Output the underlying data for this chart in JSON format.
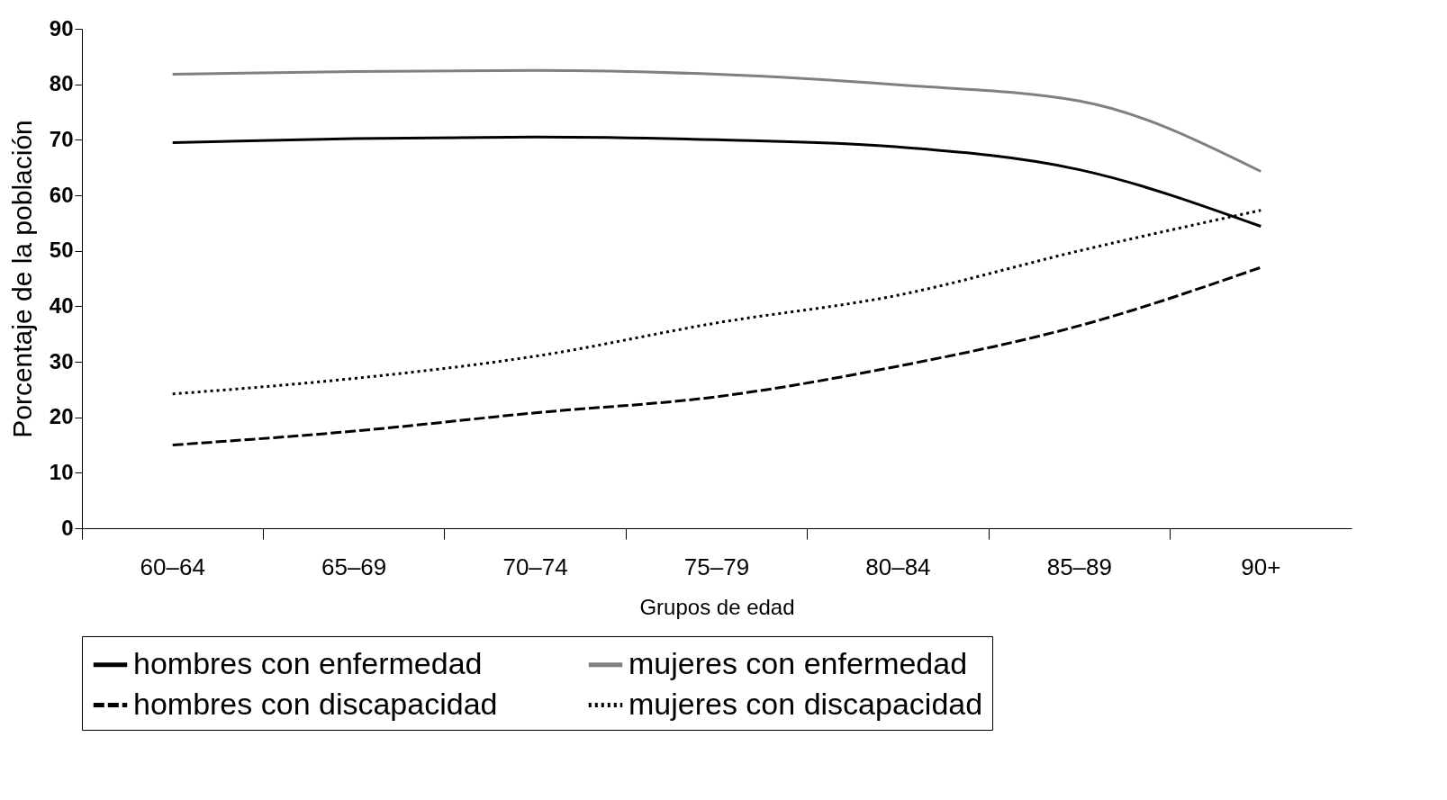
{
  "chart_data": {
    "type": "line",
    "xlabel": "Grupos de edad",
    "ylabel": "Porcentaje de la población",
    "categories": [
      "60–64",
      "65–69",
      "70–74",
      "75–79",
      "80–84",
      "85–89",
      "90+"
    ],
    "ylim": [
      0,
      90
    ],
    "yticks": [
      0,
      10,
      20,
      30,
      40,
      50,
      60,
      70,
      80,
      90
    ],
    "grid": false,
    "legend": "bottom",
    "marker": "none",
    "series": [
      {
        "name": "hombres con enfermedad",
        "color": "#000000",
        "line_style": "solid",
        "values": [
          69.5,
          70.2,
          70.5,
          70,
          68.7,
          64.6,
          54.4
        ]
      },
      {
        "name": "mujeres con enfermedad",
        "color": "#808080",
        "line_style": "solid",
        "values": [
          81.8,
          82.3,
          82.5,
          81.8,
          79.9,
          77,
          64.3
        ]
      },
      {
        "name": "hombres con discapacidad",
        "color": "#000000",
        "line_style": "dashed",
        "values": [
          15,
          17.5,
          20.8,
          23.7,
          29.2,
          36.5,
          47
        ]
      },
      {
        "name": "mujeres con discapacidad",
        "color": "#000000",
        "line_style": "dotted",
        "values": [
          24.2,
          27,
          31,
          37,
          42,
          50,
          57.3
        ]
      }
    ]
  }
}
